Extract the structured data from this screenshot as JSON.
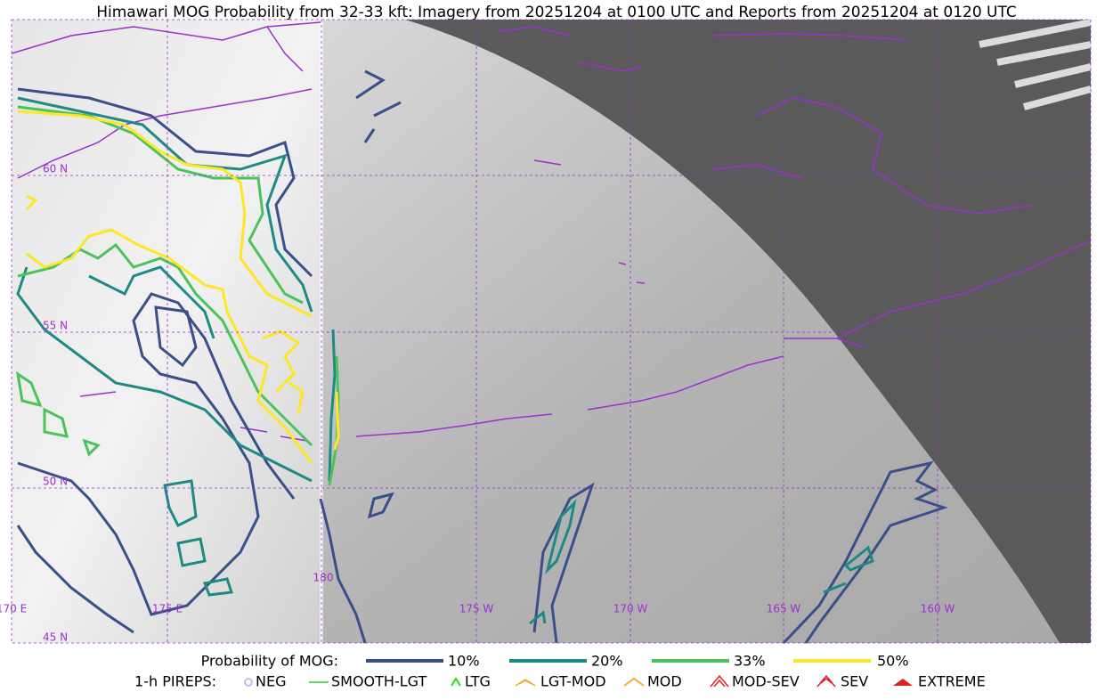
{
  "title": "Himawari MOG Probability from 32-33 kft: Imagery from 20251204 at 0100 UTC and Reports from 20251204 at 0120 UTC",
  "map": {
    "lat_labels": [
      "60 N",
      "55 N",
      "50 N",
      "45 N"
    ],
    "lon_labels": [
      "170 E",
      "175 E",
      "180",
      "175 W",
      "170 W",
      "165 W",
      "160 W"
    ]
  },
  "legend": {
    "probability": {
      "label": "Probability of MOG:",
      "items": [
        "10%",
        "20%",
        "33%",
        "50%"
      ]
    },
    "pireps": {
      "label": "1-h PIREPS:",
      "items": [
        "NEG",
        "SMOOTH-LGT",
        "LTG",
        "LGT-MOD",
        "MOD",
        "MOD-SEV",
        "SEV",
        "EXTREME"
      ]
    }
  }
}
